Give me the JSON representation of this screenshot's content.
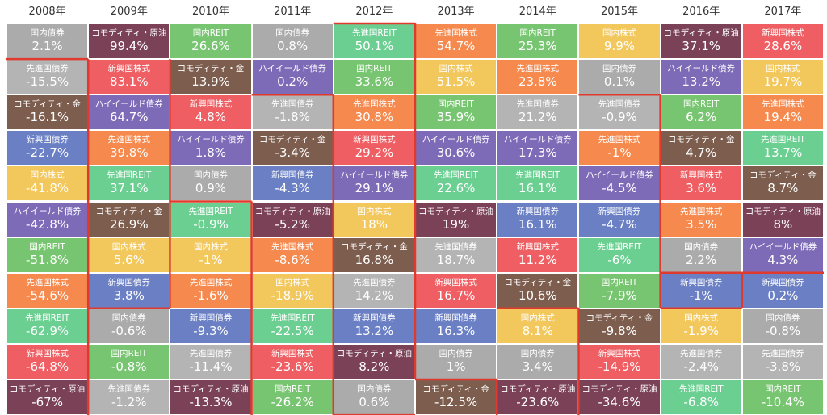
{
  "chart_data": {
    "type": "table",
    "title": "",
    "years": [
      "2008年",
      "2009年",
      "2010年",
      "2011年",
      "2012年",
      "2013年",
      "2014年",
      "2015年",
      "2016年",
      "2017年"
    ],
    "asset_classes": [
      {
        "key": "domestic_bond",
        "label": "国内債券",
        "color": "#ababab",
        "text": "#ffffff"
      },
      {
        "key": "commodity_oil",
        "label": "コモディティ・原油",
        "color": "#7b4257",
        "text": "#ffffff"
      },
      {
        "key": "domestic_reit",
        "label": "国内REIT",
        "color": "#78c571",
        "text": "#ffffff"
      },
      {
        "key": "developed_reit",
        "label": "先進国REIT",
        "color": "#6ccf92",
        "text": "#ffffff"
      },
      {
        "key": "developed_stock",
        "label": "先進国株式",
        "color": "#f5894e",
        "text": "#ffffff"
      },
      {
        "key": "emerging_stock",
        "label": "新興国株式",
        "color": "#ee5e62",
        "text": "#ffffff"
      },
      {
        "key": "domestic_stock",
        "label": "国内株式",
        "color": "#f2c75c",
        "text": "#ffffff"
      },
      {
        "key": "developed_bond",
        "label": "先進国債券",
        "color": "#b4b4b4",
        "text": "#ffffff"
      },
      {
        "key": "commodity_gold",
        "label": "コモディティ・金",
        "color": "#7d5e4e",
        "text": "#ffffff"
      },
      {
        "key": "emerging_bond",
        "label": "新興国債券",
        "color": "#6a7fc4",
        "text": "#ffffff"
      },
      {
        "key": "high_yield_bond",
        "label": "ハイイールド債券",
        "color": "#7e6bb8",
        "text": "#ffffff"
      }
    ],
    "columns": [
      [
        [
          "domestic_bond",
          "2.1%"
        ],
        [
          "developed_bond",
          "-15.5%"
        ],
        [
          "commodity_gold",
          "-16.1%"
        ],
        [
          "emerging_bond",
          "-22.7%"
        ],
        [
          "domestic_stock",
          "-41.8%"
        ],
        [
          "high_yield_bond",
          "-42.8%"
        ],
        [
          "domestic_reit",
          "-51.8%"
        ],
        [
          "developed_stock",
          "-54.6%"
        ],
        [
          "developed_reit",
          "-62.9%"
        ],
        [
          "emerging_stock",
          "-64.8%"
        ],
        [
          "commodity_oil",
          "-67%"
        ]
      ],
      [
        [
          "commodity_oil",
          "99.4%"
        ],
        [
          "emerging_stock",
          "83.1%"
        ],
        [
          "high_yield_bond",
          "64.7%"
        ],
        [
          "developed_stock",
          "39.8%"
        ],
        [
          "developed_reit",
          "37.1%"
        ],
        [
          "commodity_gold",
          "26.9%"
        ],
        [
          "domestic_stock",
          "5.6%"
        ],
        [
          "emerging_bond",
          "3.8%"
        ],
        [
          "domestic_bond",
          "-0.6%"
        ],
        [
          "domestic_reit",
          "-0.8%"
        ],
        [
          "developed_bond",
          "-1.2%"
        ]
      ],
      [
        [
          "domestic_reit",
          "26.6%"
        ],
        [
          "commodity_gold",
          "13.9%"
        ],
        [
          "emerging_stock",
          "4.8%"
        ],
        [
          "high_yield_bond",
          "1.8%"
        ],
        [
          "domestic_bond",
          "0.9%"
        ],
        [
          "developed_reit",
          "-0.9%"
        ],
        [
          "domestic_stock",
          "-1%"
        ],
        [
          "developed_stock",
          "-1.6%"
        ],
        [
          "emerging_bond",
          "-9.3%"
        ],
        [
          "developed_bond",
          "-11.4%"
        ],
        [
          "commodity_oil",
          "-13.3%"
        ]
      ],
      [
        [
          "domestic_bond",
          "0.8%"
        ],
        [
          "high_yield_bond",
          "0.2%"
        ],
        [
          "developed_bond",
          "-1.8%"
        ],
        [
          "commodity_gold",
          "-3.4%"
        ],
        [
          "emerging_bond",
          "-4.3%"
        ],
        [
          "commodity_oil",
          "-5.2%"
        ],
        [
          "developed_stock",
          "-8.6%"
        ],
        [
          "domestic_stock",
          "-18.9%"
        ],
        [
          "developed_reit",
          "-22.5%"
        ],
        [
          "emerging_stock",
          "-23.6%"
        ],
        [
          "domestic_reit",
          "-26.2%"
        ]
      ],
      [
        [
          "developed_reit",
          "50.1%"
        ],
        [
          "domestic_reit",
          "33.6%"
        ],
        [
          "developed_stock",
          "30.8%"
        ],
        [
          "emerging_stock",
          "29.2%"
        ],
        [
          "high_yield_bond",
          "29.1%"
        ],
        [
          "domestic_stock",
          "18%"
        ],
        [
          "commodity_gold",
          "16.8%"
        ],
        [
          "developed_bond",
          "14.2%"
        ],
        [
          "emerging_bond",
          "13.2%"
        ],
        [
          "commodity_oil",
          "8.2%"
        ],
        [
          "domestic_bond",
          "0.6%"
        ]
      ],
      [
        [
          "developed_stock",
          "54.7%"
        ],
        [
          "domestic_stock",
          "51.5%"
        ],
        [
          "domestic_reit",
          "35.9%"
        ],
        [
          "high_yield_bond",
          "30.6%"
        ],
        [
          "developed_reit",
          "22.6%"
        ],
        [
          "commodity_oil",
          "19%"
        ],
        [
          "developed_bond",
          "18.7%"
        ],
        [
          "emerging_stock",
          "16.7%"
        ],
        [
          "emerging_bond",
          "16.3%"
        ],
        [
          "domestic_bond",
          "1%"
        ],
        [
          "commodity_gold",
          "-12.5%"
        ]
      ],
      [
        [
          "domestic_reit",
          "25.3%"
        ],
        [
          "developed_stock",
          "23.8%"
        ],
        [
          "developed_bond",
          "21.2%"
        ],
        [
          "high_yield_bond",
          "17.3%"
        ],
        [
          "developed_reit",
          "16.1%"
        ],
        [
          "emerging_bond",
          "16.1%"
        ],
        [
          "emerging_stock",
          "11.2%"
        ],
        [
          "commodity_gold",
          "10.6%"
        ],
        [
          "domestic_stock",
          "8.1%"
        ],
        [
          "domestic_bond",
          "3.4%"
        ],
        [
          "commodity_oil",
          "-23.6%"
        ]
      ],
      [
        [
          "domestic_stock",
          "9.9%"
        ],
        [
          "domestic_bond",
          "0.1%"
        ],
        [
          "developed_bond",
          "-0.9%"
        ],
        [
          "developed_stock",
          "-1%"
        ],
        [
          "high_yield_bond",
          "-4.5%"
        ],
        [
          "emerging_bond",
          "-4.7%"
        ],
        [
          "developed_reit",
          "-6%"
        ],
        [
          "domestic_reit",
          "-7.9%"
        ],
        [
          "commodity_gold",
          "-9.8%"
        ],
        [
          "emerging_stock",
          "-14.9%"
        ],
        [
          "commodity_oil",
          "-34.6%"
        ]
      ],
      [
        [
          "commodity_oil",
          "37.1%"
        ],
        [
          "high_yield_bond",
          "13.2%"
        ],
        [
          "domestic_reit",
          "6.2%"
        ],
        [
          "commodity_gold",
          "4.7%"
        ],
        [
          "emerging_stock",
          "3.6%"
        ],
        [
          "developed_stock",
          "3.5%"
        ],
        [
          "domestic_bond",
          "2.2%"
        ],
        [
          "emerging_bond",
          "-1%"
        ],
        [
          "domestic_stock",
          "-1.9%"
        ],
        [
          "developed_bond",
          "-2.4%"
        ],
        [
          "developed_reit",
          "-6.8%"
        ]
      ],
      [
        [
          "emerging_stock",
          "28.6%"
        ],
        [
          "domestic_stock",
          "19.7%"
        ],
        [
          "developed_stock",
          "19.4%"
        ],
        [
          "developed_reit",
          "13.7%"
        ],
        [
          "commodity_gold",
          "8.7%"
        ],
        [
          "commodity_oil",
          "8%"
        ],
        [
          "high_yield_bond",
          "4.3%"
        ],
        [
          "emerging_bond",
          "0.2%"
        ],
        [
          "domestic_bond",
          "-0.8%"
        ],
        [
          "developed_bond",
          "-3.8%"
        ],
        [
          "domestic_reit",
          "-10.4%"
        ]
      ]
    ],
    "highlight": {
      "color": "#e03a2e",
      "boundaries": [
        {
          "between": [
            0,
            1
          ],
          "top": 1,
          "bottom": 11
        },
        {
          "between": [
            1,
            2
          ],
          "top": 1,
          "bottom": 8
        },
        {
          "between": [
            2,
            3
          ],
          "top": 5,
          "bottom": 11
        },
        {
          "between": [
            3,
            4
          ],
          "top": 2,
          "bottom": 11
        },
        {
          "between": [
            4,
            5
          ],
          "top": 0,
          "bottom": 10
        },
        {
          "between": [
            5,
            6
          ],
          "top": 10,
          "bottom": 11
        },
        {
          "between": [
            6,
            7
          ],
          "top": 8,
          "bottom": 11
        },
        {
          "between": [
            7,
            8
          ],
          "top": 2,
          "bottom": 8
        },
        {
          "between": [
            8,
            9
          ],
          "top": 7,
          "bottom": 8
        }
      ]
    }
  }
}
